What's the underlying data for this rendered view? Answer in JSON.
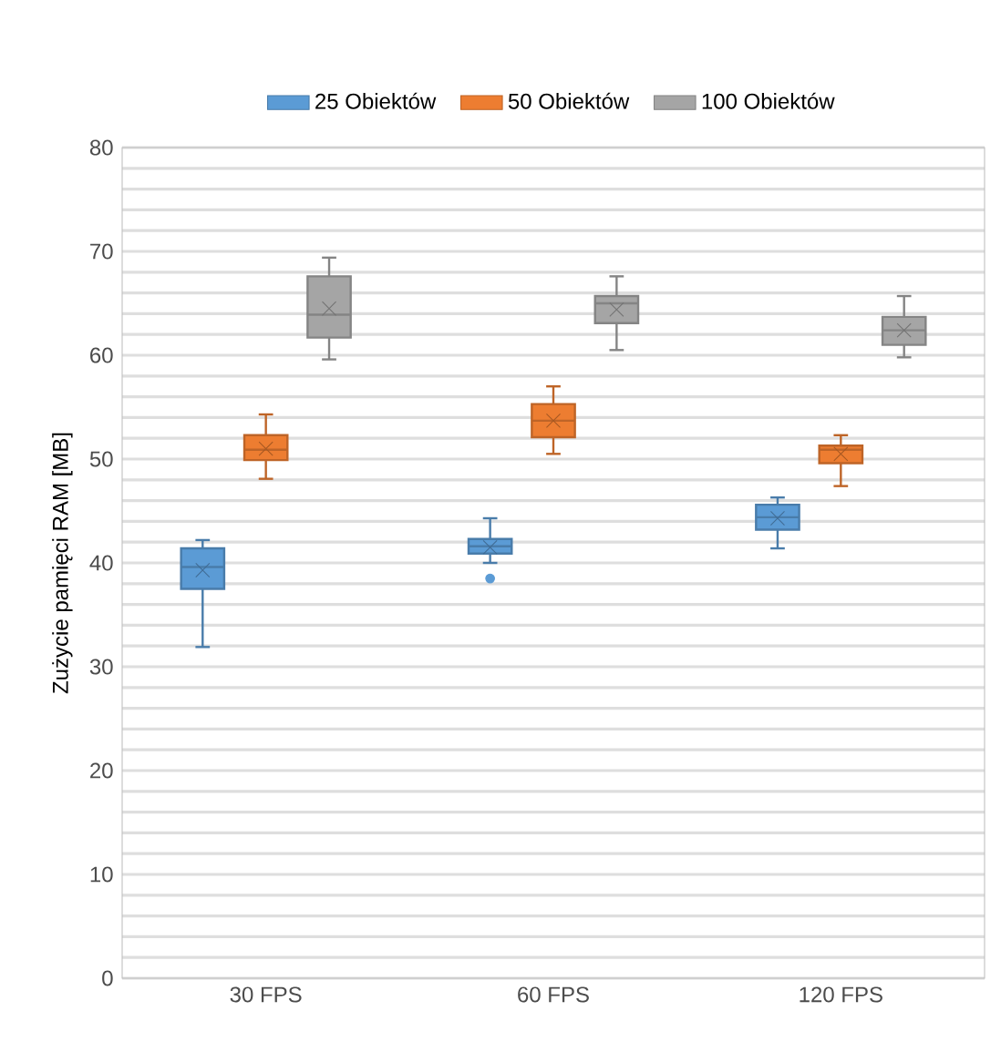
{
  "chart_data": {
    "type": "box",
    "ylabel": "Zużycie pamięci RAM [MB]",
    "categories": [
      "30 FPS",
      "60 FPS",
      "120 FPS"
    ],
    "series": [
      {
        "name": "25 Obiektów",
        "color": "#5b9bd5",
        "boxes": [
          {
            "low": 31.9,
            "q1": 37.5,
            "median": 39.6,
            "q3": 41.4,
            "high": 42.2,
            "mean": 39.3
          },
          {
            "low": 40.0,
            "q1": 40.9,
            "median": 41.6,
            "q3": 42.3,
            "high": 44.3,
            "mean": 41.5,
            "outliers": [
              38.5
            ]
          },
          {
            "low": 41.4,
            "q1": 43.2,
            "median": 44.4,
            "q3": 45.6,
            "high": 46.3,
            "mean": 44.3
          }
        ]
      },
      {
        "name": "50 Obiektów",
        "color": "#ed7d31",
        "boxes": [
          {
            "low": 48.1,
            "q1": 49.9,
            "median": 50.9,
            "q3": 52.3,
            "high": 54.3,
            "mean": 51.0
          },
          {
            "low": 50.5,
            "q1": 52.1,
            "median": 53.7,
            "q3": 55.3,
            "high": 57.0,
            "mean": 53.7
          },
          {
            "low": 47.4,
            "q1": 49.6,
            "median": 50.9,
            "q3": 51.3,
            "high": 52.3,
            "mean": 50.5
          }
        ]
      },
      {
        "name": "100 Obiektów",
        "color": "#a5a5a5",
        "boxes": [
          {
            "low": 59.6,
            "q1": 61.7,
            "median": 63.9,
            "q3": 67.6,
            "high": 69.4,
            "mean": 64.5
          },
          {
            "low": 60.5,
            "q1": 63.1,
            "median": 65.0,
            "q3": 65.7,
            "high": 67.6,
            "mean": 64.4
          },
          {
            "low": 59.8,
            "q1": 61.0,
            "median": 62.4,
            "q3": 63.7,
            "high": 65.7,
            "mean": 62.4
          }
        ]
      }
    ],
    "ylim": [
      0,
      80
    ],
    "yticks": [
      0,
      10,
      20,
      30,
      40,
      50,
      60,
      70,
      80
    ],
    "grid": true,
    "legend": "top"
  }
}
